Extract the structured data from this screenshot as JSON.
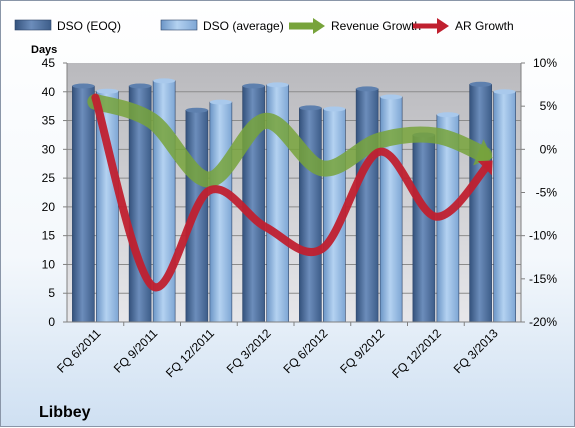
{
  "chart_data": {
    "type": "bar",
    "company": "Libbey",
    "ylabel": "Days",
    "categories": [
      "FQ 6/2011",
      "FQ 9/2011",
      "FQ 12/2011",
      "FQ 3/2012",
      "FQ 6/2012",
      "FQ 9/2012",
      "FQ 12/2012",
      "FQ 3/2013"
    ],
    "ylim": [
      0,
      45
    ],
    "y_ticks": [
      "0",
      "5",
      "10",
      "15",
      "20",
      "25",
      "30",
      "35",
      "40",
      "45"
    ],
    "y2lim": [
      -20,
      10
    ],
    "y2_ticks": [
      "-20%",
      "-15%",
      "-10%",
      "-5%",
      "0%",
      "5%",
      "10%"
    ],
    "series": [
      {
        "name": "DSO (EOQ)",
        "kind": "bar",
        "axis": "left",
        "color": "#4f6f9c",
        "values": [
          41.0,
          41.0,
          36.8,
          41.0,
          37.2,
          40.5,
          32.5,
          41.3
        ]
      },
      {
        "name": "DSO (average)",
        "kind": "bar",
        "axis": "left",
        "color": "#8cb4e2",
        "values": [
          40.1,
          41.9,
          38.2,
          41.2,
          37.0,
          39.1,
          36.0,
          40.0
        ]
      },
      {
        "name": "Revenue Growth",
        "kind": "line",
        "axis": "right",
        "color": "#77a33b",
        "values": [
          5.5,
          3.3,
          -3.5,
          3.3,
          -2.2,
          1.0,
          1.6,
          -1.0
        ]
      },
      {
        "name": "AR Growth",
        "kind": "line",
        "axis": "right",
        "color": "#c0202f",
        "values": [
          6.0,
          -15.8,
          -4.8,
          -9.0,
          -11.5,
          -0.3,
          -7.8,
          -1.3
        ]
      }
    ],
    "legend_position": "top",
    "grid": true
  }
}
